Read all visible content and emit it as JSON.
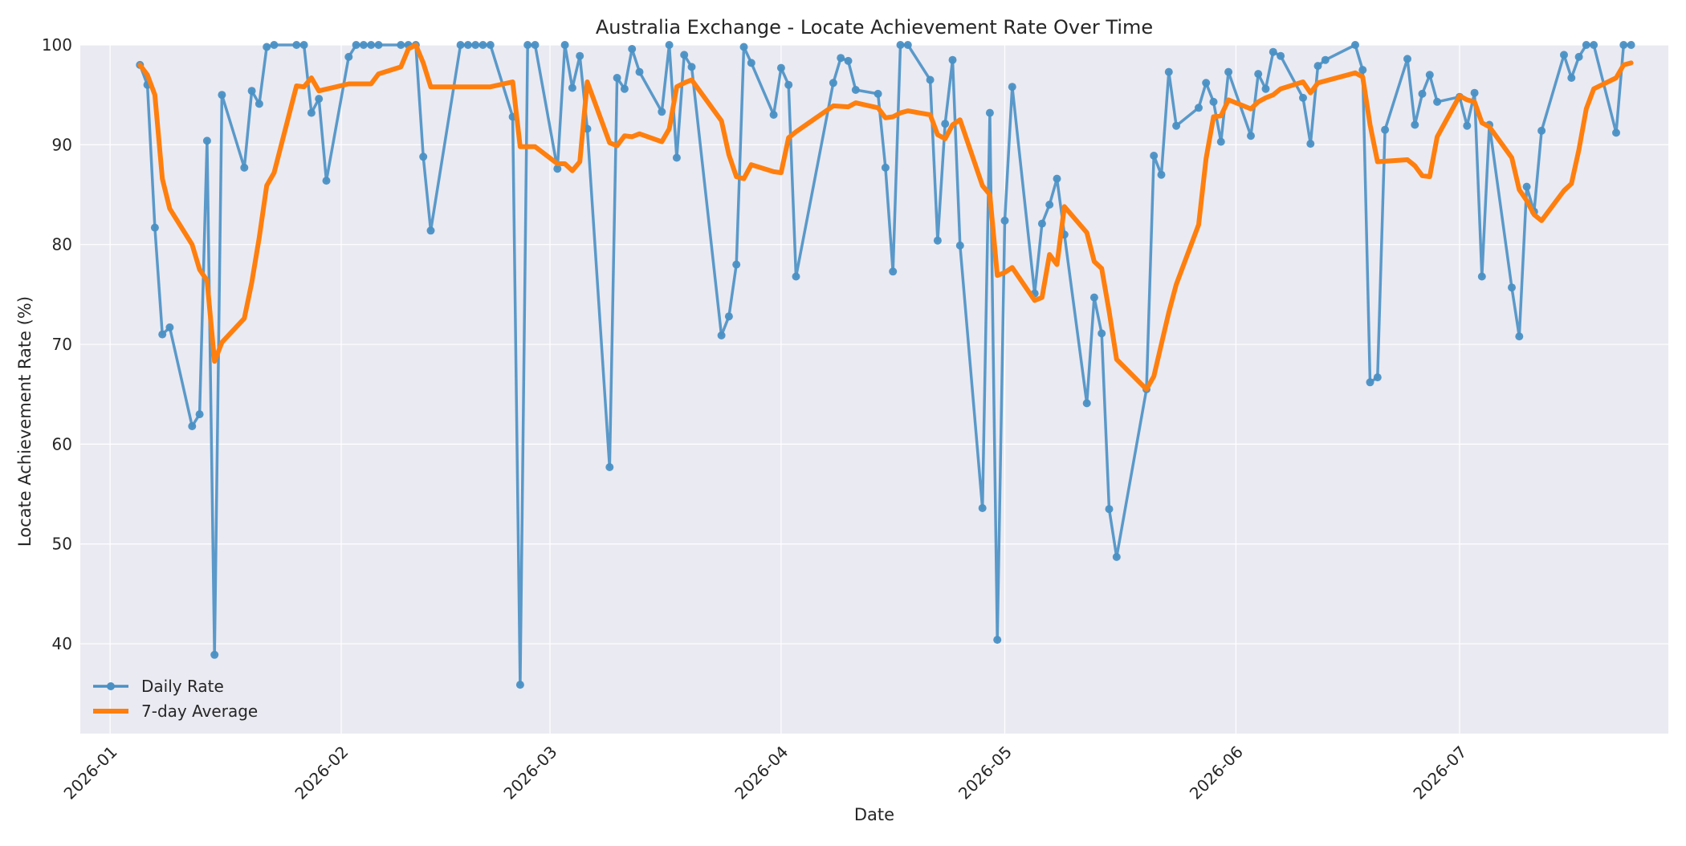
{
  "chart_data": {
    "type": "line",
    "title": "Australia Exchange - Locate Achievement Rate Over Time",
    "xlabel": "Date",
    "ylabel": "Locate Achievement Rate (%)",
    "xlim": [
      "2025-12-28",
      "2026-07-29"
    ],
    "ylim": [
      31,
      100
    ],
    "x_ticks": [
      "2026-01",
      "2026-02",
      "2026-03",
      "2026-04",
      "2026-05",
      "2026-06",
      "2026-07"
    ],
    "y_ticks": [
      40,
      50,
      60,
      70,
      80,
      90,
      100
    ],
    "grid": true,
    "legend": "lower-left",
    "colors": {
      "background": "#eaeaf2",
      "daily": "#4a90c4",
      "average": "#ff7f0e",
      "grid": "#ffffff"
    },
    "series": [
      {
        "name": "Daily Rate",
        "style": "line-markers",
        "points": [
          [
            "2026-01-05",
            98.0
          ],
          [
            "2026-01-06",
            96.0
          ],
          [
            "2026-01-07",
            81.7
          ],
          [
            "2026-01-08",
            71.0
          ],
          [
            "2026-01-09",
            71.7
          ],
          [
            "2026-01-12",
            61.8
          ],
          [
            "2026-01-13",
            63.0
          ],
          [
            "2026-01-14",
            90.4
          ],
          [
            "2026-01-15",
            38.9
          ],
          [
            "2026-01-16",
            95.0
          ],
          [
            "2026-01-19",
            87.7
          ],
          [
            "2026-01-20",
            95.4
          ],
          [
            "2026-01-21",
            94.1
          ],
          [
            "2026-01-22",
            99.8
          ],
          [
            "2026-01-23",
            100.0
          ],
          [
            "2026-01-26",
            100.0
          ],
          [
            "2026-01-27",
            100.0
          ],
          [
            "2026-01-28",
            93.2
          ],
          [
            "2026-01-29",
            94.6
          ],
          [
            "2026-01-30",
            86.4
          ],
          [
            "2026-02-02",
            98.8
          ],
          [
            "2026-02-03",
            100.0
          ],
          [
            "2026-02-04",
            100.0
          ],
          [
            "2026-02-05",
            100.0
          ],
          [
            "2026-02-06",
            100.0
          ],
          [
            "2026-02-09",
            100.0
          ],
          [
            "2026-02-10",
            100.0
          ],
          [
            "2026-02-11",
            100.0
          ],
          [
            "2026-02-12",
            88.8
          ],
          [
            "2026-02-13",
            81.4
          ],
          [
            "2026-02-17",
            100.0
          ],
          [
            "2026-02-18",
            100.0
          ],
          [
            "2026-02-19",
            100.0
          ],
          [
            "2026-02-20",
            100.0
          ],
          [
            "2026-02-21",
            100.0
          ],
          [
            "2026-02-24",
            92.8
          ],
          [
            "2026-02-25",
            35.9
          ],
          [
            "2026-02-26",
            100.0
          ],
          [
            "2026-02-27",
            100.0
          ],
          [
            "2026-03-02",
            87.6
          ],
          [
            "2026-03-03",
            100.0
          ],
          [
            "2026-03-04",
            95.7
          ],
          [
            "2026-03-05",
            98.9
          ],
          [
            "2026-03-06",
            91.6
          ],
          [
            "2026-03-09",
            57.7
          ],
          [
            "2026-03-10",
            96.7
          ],
          [
            "2026-03-11",
            95.6
          ],
          [
            "2026-03-12",
            99.6
          ],
          [
            "2026-03-13",
            97.3
          ],
          [
            "2026-03-16",
            93.3
          ],
          [
            "2026-03-17",
            100.0
          ],
          [
            "2026-03-18",
            88.7
          ],
          [
            "2026-03-19",
            99.0
          ],
          [
            "2026-03-20",
            97.8
          ],
          [
            "2026-03-24",
            70.9
          ],
          [
            "2026-03-25",
            72.8
          ],
          [
            "2026-03-26",
            78.0
          ],
          [
            "2026-03-27",
            99.8
          ],
          [
            "2026-03-28",
            98.2
          ],
          [
            "2026-03-31",
            93.0
          ],
          [
            "2026-04-01",
            97.7
          ],
          [
            "2026-04-02",
            96.0
          ],
          [
            "2026-04-03",
            76.8
          ],
          [
            "2026-04-08",
            96.2
          ],
          [
            "2026-04-09",
            98.7
          ],
          [
            "2026-04-10",
            98.4
          ],
          [
            "2026-04-11",
            95.5
          ],
          [
            "2026-04-14",
            95.1
          ],
          [
            "2026-04-15",
            87.7
          ],
          [
            "2026-04-16",
            77.3
          ],
          [
            "2026-04-17",
            100.0
          ],
          [
            "2026-04-18",
            100.0
          ],
          [
            "2026-04-21",
            96.5
          ],
          [
            "2026-04-22",
            80.4
          ],
          [
            "2026-04-23",
            92.1
          ],
          [
            "2026-04-24",
            98.5
          ],
          [
            "2026-04-25",
            79.9
          ],
          [
            "2026-04-28",
            53.6
          ],
          [
            "2026-04-29",
            93.2
          ],
          [
            "2026-04-30",
            40.4
          ],
          [
            "2026-05-01",
            82.4
          ],
          [
            "2026-05-02",
            95.8
          ],
          [
            "2026-05-05",
            75.1
          ],
          [
            "2026-05-06",
            82.1
          ],
          [
            "2026-05-07",
            84.0
          ],
          [
            "2026-05-08",
            86.6
          ],
          [
            "2026-05-09",
            81.0
          ],
          [
            "2026-05-12",
            64.1
          ],
          [
            "2026-05-13",
            74.7
          ],
          [
            "2026-05-14",
            71.1
          ],
          [
            "2026-05-15",
            53.5
          ],
          [
            "2026-05-16",
            48.7
          ],
          [
            "2026-05-20",
            65.5
          ],
          [
            "2026-05-21",
            88.9
          ],
          [
            "2026-05-22",
            87.0
          ],
          [
            "2026-05-23",
            97.3
          ],
          [
            "2026-05-24",
            91.9
          ],
          [
            "2026-05-27",
            93.7
          ],
          [
            "2026-05-28",
            96.2
          ],
          [
            "2026-05-29",
            94.3
          ],
          [
            "2026-05-30",
            90.3
          ],
          [
            "2026-05-31",
            97.3
          ],
          [
            "2026-06-03",
            90.9
          ],
          [
            "2026-06-04",
            97.1
          ],
          [
            "2026-06-05",
            95.6
          ],
          [
            "2026-06-06",
            99.3
          ],
          [
            "2026-06-07",
            98.9
          ],
          [
            "2026-06-10",
            94.7
          ],
          [
            "2026-06-11",
            90.1
          ],
          [
            "2026-06-12",
            97.9
          ],
          [
            "2026-06-13",
            98.5
          ],
          [
            "2026-06-17",
            100.0
          ],
          [
            "2026-06-18",
            97.5
          ],
          [
            "2026-06-19",
            66.2
          ],
          [
            "2026-06-20",
            66.7
          ],
          [
            "2026-06-21",
            91.5
          ],
          [
            "2026-06-24",
            98.6
          ],
          [
            "2026-06-25",
            92.0
          ],
          [
            "2026-06-26",
            95.1
          ],
          [
            "2026-06-27",
            97.0
          ],
          [
            "2026-06-28",
            94.3
          ],
          [
            "2026-07-01",
            94.8
          ],
          [
            "2026-07-02",
            91.9
          ],
          [
            "2026-07-03",
            95.2
          ],
          [
            "2026-07-04",
            76.8
          ],
          [
            "2026-07-05",
            92.0
          ],
          [
            "2026-07-08",
            75.7
          ],
          [
            "2026-07-09",
            70.8
          ],
          [
            "2026-07-10",
            85.8
          ],
          [
            "2026-07-11",
            83.3
          ],
          [
            "2026-07-12",
            91.4
          ],
          [
            "2026-07-15",
            99.0
          ],
          [
            "2026-07-16",
            96.7
          ],
          [
            "2026-07-17",
            98.8
          ],
          [
            "2026-07-18",
            100.0
          ],
          [
            "2026-07-19",
            100.0
          ],
          [
            "2026-07-22",
            91.2
          ],
          [
            "2026-07-23",
            100.0
          ],
          [
            "2026-07-24",
            100.0
          ]
        ]
      },
      {
        "name": "7-day Average",
        "style": "line",
        "points": [
          [
            "2026-01-05",
            98.0
          ],
          [
            "2026-01-06",
            97.0
          ],
          [
            "2026-01-07",
            95.0
          ],
          [
            "2026-01-08",
            86.6
          ],
          [
            "2026-01-09",
            83.6
          ],
          [
            "2026-01-12",
            80.0
          ],
          [
            "2026-01-13",
            77.5
          ],
          [
            "2026-01-14",
            76.4
          ],
          [
            "2026-01-15",
            68.3
          ],
          [
            "2026-01-16",
            70.2
          ],
          [
            "2026-01-19",
            72.6
          ],
          [
            "2026-01-20",
            76.2
          ],
          [
            "2026-01-21",
            80.7
          ],
          [
            "2026-01-22",
            85.9
          ],
          [
            "2026-01-23",
            87.2
          ],
          [
            "2026-01-26",
            95.9
          ],
          [
            "2026-01-27",
            95.8
          ],
          [
            "2026-01-28",
            96.7
          ],
          [
            "2026-01-29",
            95.4
          ],
          [
            "2026-02-02",
            96.1
          ],
          [
            "2026-02-05",
            96.1
          ],
          [
            "2026-02-06",
            97.1
          ],
          [
            "2026-02-09",
            97.8
          ],
          [
            "2026-02-10",
            99.6
          ],
          [
            "2026-02-11",
            100.0
          ],
          [
            "2026-02-12",
            98.2
          ],
          [
            "2026-02-13",
            95.8
          ],
          [
            "2026-02-21",
            95.8
          ],
          [
            "2026-02-24",
            96.3
          ],
          [
            "2026-02-25",
            89.8
          ],
          [
            "2026-02-27",
            89.8
          ],
          [
            "2026-03-02",
            88.1
          ],
          [
            "2026-03-03",
            88.1
          ],
          [
            "2026-03-04",
            87.4
          ],
          [
            "2026-03-05",
            88.3
          ],
          [
            "2026-03-06",
            96.3
          ],
          [
            "2026-03-09",
            90.2
          ],
          [
            "2026-03-10",
            89.9
          ],
          [
            "2026-03-11",
            90.9
          ],
          [
            "2026-03-12",
            90.8
          ],
          [
            "2026-03-13",
            91.1
          ],
          [
            "2026-03-16",
            90.3
          ],
          [
            "2026-03-17",
            91.6
          ],
          [
            "2026-03-18",
            95.8
          ],
          [
            "2026-03-19",
            96.2
          ],
          [
            "2026-03-20",
            96.5
          ],
          [
            "2026-03-24",
            92.4
          ],
          [
            "2026-03-25",
            89.0
          ],
          [
            "2026-03-26",
            86.8
          ],
          [
            "2026-03-27",
            86.6
          ],
          [
            "2026-03-28",
            88.0
          ],
          [
            "2026-03-31",
            87.3
          ],
          [
            "2026-04-01",
            87.2
          ],
          [
            "2026-04-02",
            90.7
          ],
          [
            "2026-04-03",
            91.3
          ],
          [
            "2026-04-08",
            93.9
          ],
          [
            "2026-04-10",
            93.8
          ],
          [
            "2026-04-11",
            94.2
          ],
          [
            "2026-04-14",
            93.7
          ],
          [
            "2026-04-15",
            92.7
          ],
          [
            "2026-04-16",
            92.8
          ],
          [
            "2026-04-17",
            93.2
          ],
          [
            "2026-04-18",
            93.4
          ],
          [
            "2026-04-21",
            93.0
          ],
          [
            "2026-04-22",
            91.0
          ],
          [
            "2026-04-23",
            90.6
          ],
          [
            "2026-04-24",
            92.0
          ],
          [
            "2026-04-25",
            92.5
          ],
          [
            "2026-04-28",
            85.9
          ],
          [
            "2026-04-29",
            85.0
          ],
          [
            "2026-04-30",
            76.9
          ],
          [
            "2026-05-01",
            77.2
          ],
          [
            "2026-05-02",
            77.7
          ],
          [
            "2026-05-05",
            74.4
          ],
          [
            "2026-05-06",
            74.7
          ],
          [
            "2026-05-07",
            79.0
          ],
          [
            "2026-05-08",
            78.0
          ],
          [
            "2026-05-09",
            83.8
          ],
          [
            "2026-05-12",
            81.2
          ],
          [
            "2026-05-13",
            78.3
          ],
          [
            "2026-05-14",
            77.6
          ],
          [
            "2026-05-15",
            73.3
          ],
          [
            "2026-05-16",
            68.5
          ],
          [
            "2026-05-20",
            65.5
          ],
          [
            "2026-05-21",
            66.8
          ],
          [
            "2026-05-22",
            70.0
          ],
          [
            "2026-05-23",
            73.2
          ],
          [
            "2026-05-24",
            76.0
          ],
          [
            "2026-05-27",
            82.0
          ],
          [
            "2026-05-28",
            88.6
          ],
          [
            "2026-05-29",
            92.8
          ],
          [
            "2026-05-30",
            92.9
          ],
          [
            "2026-05-31",
            94.5
          ],
          [
            "2026-06-03",
            93.6
          ],
          [
            "2026-06-04",
            94.3
          ],
          [
            "2026-06-05",
            94.7
          ],
          [
            "2026-06-06",
            95.0
          ],
          [
            "2026-06-07",
            95.6
          ],
          [
            "2026-06-10",
            96.3
          ],
          [
            "2026-06-11",
            95.2
          ],
          [
            "2026-06-12",
            96.2
          ],
          [
            "2026-06-17",
            97.2
          ],
          [
            "2026-06-18",
            96.8
          ],
          [
            "2026-06-19",
            92.0
          ],
          [
            "2026-06-20",
            88.3
          ],
          [
            "2026-06-24",
            88.5
          ],
          [
            "2026-06-25",
            87.9
          ],
          [
            "2026-06-26",
            86.9
          ],
          [
            "2026-06-27",
            86.8
          ],
          [
            "2026-06-28",
            90.8
          ],
          [
            "2026-07-01",
            94.9
          ],
          [
            "2026-07-02",
            94.5
          ],
          [
            "2026-07-03",
            94.3
          ],
          [
            "2026-07-04",
            92.2
          ],
          [
            "2026-07-05",
            91.8
          ],
          [
            "2026-07-08",
            88.7
          ],
          [
            "2026-07-09",
            85.5
          ],
          [
            "2026-07-10",
            84.4
          ],
          [
            "2026-07-11",
            83.0
          ],
          [
            "2026-07-12",
            82.4
          ],
          [
            "2026-07-15",
            85.4
          ],
          [
            "2026-07-16",
            86.1
          ],
          [
            "2026-07-17",
            89.5
          ],
          [
            "2026-07-18",
            93.6
          ],
          [
            "2026-07-19",
            95.6
          ],
          [
            "2026-07-22",
            96.7
          ],
          [
            "2026-07-23",
            98.0
          ],
          [
            "2026-07-24",
            98.2
          ]
        ]
      }
    ]
  }
}
